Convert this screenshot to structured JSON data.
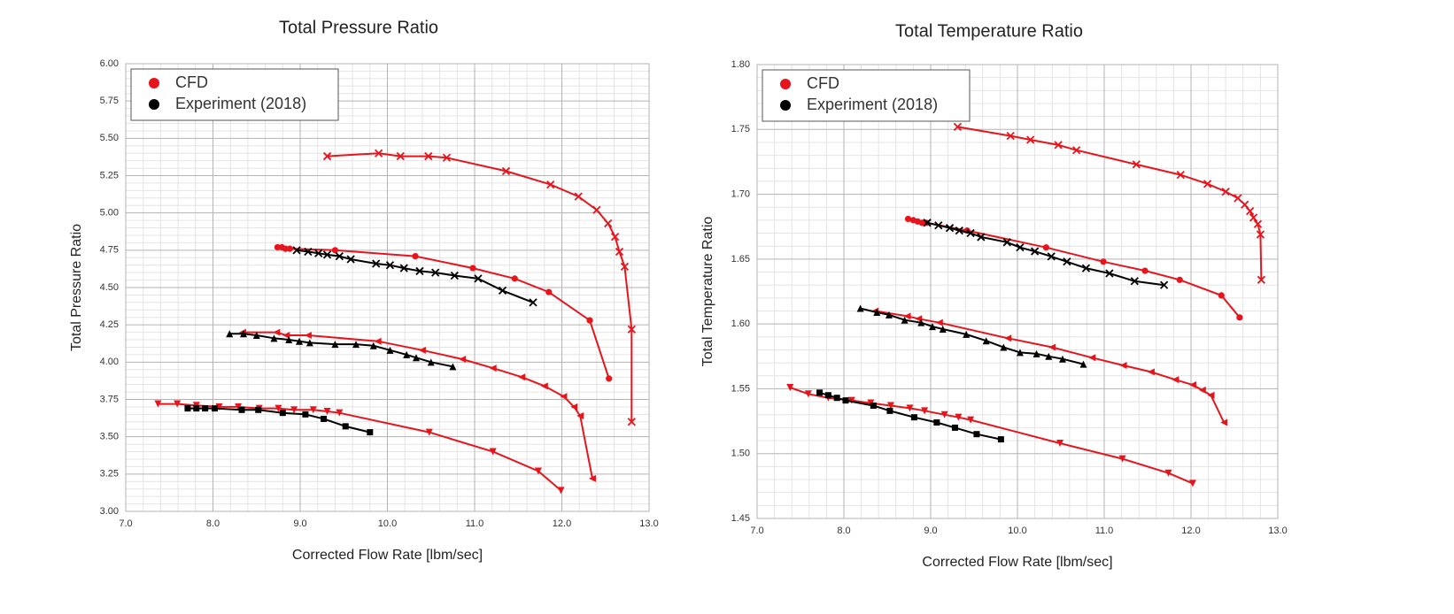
{
  "chart_data": [
    {
      "type": "line",
      "title": "Total Pressure Ratio",
      "x_label": "Corrected Flow Rate [lbm/sec]",
      "y_label": "Total Pressure Ratio",
      "xlim": [
        7,
        13
      ],
      "xticks": [
        {
          "value": 7,
          "label": "7.0"
        },
        {
          "value": 8,
          "label": "8.0"
        },
        {
          "value": 9,
          "label": "9.0"
        },
        {
          "value": 10,
          "label": "10.0"
        },
        {
          "value": 11,
          "label": "11.0"
        },
        {
          "value": 12,
          "label": "12.0"
        },
        {
          "value": 13,
          "label": "13.0"
        }
      ],
      "ylim": [
        3,
        6
      ],
      "yticks": [
        {
          "value": 3,
          "label": "3.00"
        },
        3.25,
        {
          "value": 3.5,
          "label": "3.50"
        },
        3.75,
        {
          "value": 4,
          "label": "4.00"
        },
        4.25,
        {
          "value": 4.5,
          "label": "4.50"
        },
        4.75,
        {
          "value": 5,
          "label": "5.00"
        },
        5.25,
        {
          "value": 5.5,
          "label": "5.50"
        },
        5.75,
        {
          "value": 6,
          "label": "6.00"
        }
      ],
      "grid": true,
      "minor_grid": 5,
      "legend": "upper left",
      "series": [
        {
          "name": "CFD",
          "color": "#e8141c",
          "lines": [
            {
              "marker": "x",
              "x": [
                9.31,
                9.9,
                10.15,
                10.47,
                10.68,
                11.36,
                11.87,
                12.19,
                12.4,
                12.53,
                12.61,
                12.66,
                12.72,
                12.8,
                12.8
              ],
              "values": [
                5.38,
                5.4,
                5.38,
                5.38,
                5.37,
                5.28,
                5.19,
                5.11,
                5.02,
                4.93,
                4.84,
                4.74,
                4.64,
                4.22,
                3.6
              ]
            },
            {
              "marker": "circle",
              "x": [
                8.74,
                8.79,
                8.83,
                8.88,
                9.4,
                10.32,
                10.98,
                11.46,
                11.85,
                12.32,
                12.54
              ],
              "values": [
                4.77,
                4.77,
                4.76,
                4.76,
                4.75,
                4.71,
                4.63,
                4.56,
                4.47,
                4.28,
                3.89
              ]
            },
            {
              "marker": "triangle-left",
              "x": [
                8.34,
                8.73,
                8.84,
                9.09,
                9.89,
                10.4,
                10.86,
                11.21,
                11.54,
                11.8,
                12.02,
                12.14,
                12.21,
                12.35
              ],
              "values": [
                4.2,
                4.2,
                4.18,
                4.18,
                4.14,
                4.08,
                4.02,
                3.96,
                3.9,
                3.84,
                3.77,
                3.7,
                3.64,
                3.22
              ]
            },
            {
              "marker": "triangle-down",
              "x": [
                7.37,
                7.59,
                7.81,
                8.07,
                8.29,
                8.53,
                8.75,
                8.93,
                9.15,
                9.31,
                9.45,
                10.48,
                11.21,
                11.73,
                11.99
              ],
              "values": [
                3.72,
                3.72,
                3.71,
                3.7,
                3.7,
                3.69,
                3.69,
                3.68,
                3.68,
                3.67,
                3.66,
                3.53,
                3.4,
                3.27,
                3.14
              ]
            }
          ]
        },
        {
          "name": "Experiment (2018)",
          "color": "#000000",
          "lines": [
            {
              "marker": "x",
              "x": [
                8.96,
                9.09,
                9.21,
                9.31,
                9.45,
                9.58,
                9.87,
                10.03,
                10.19,
                10.37,
                10.55,
                10.77,
                11.04,
                11.32,
                11.67
              ],
              "values": [
                4.75,
                4.74,
                4.73,
                4.72,
                4.71,
                4.69,
                4.66,
                4.65,
                4.63,
                4.61,
                4.6,
                4.58,
                4.56,
                4.48,
                4.4
              ]
            },
            {
              "marker": "triangle-up",
              "x": [
                8.19,
                8.35,
                8.5,
                8.7,
                8.87,
                8.99,
                9.11,
                9.4,
                9.64,
                9.84,
                10.03,
                10.22,
                10.33,
                10.5,
                10.75
              ],
              "values": [
                4.19,
                4.19,
                4.18,
                4.16,
                4.15,
                4.14,
                4.13,
                4.12,
                4.12,
                4.11,
                4.08,
                4.05,
                4.03,
                4.0,
                3.97
              ]
            },
            {
              "marker": "square",
              "x": [
                7.71,
                7.81,
                7.91,
                8.02,
                8.33,
                8.52,
                8.8,
                9.06,
                9.27,
                9.52,
                9.8
              ],
              "values": [
                3.69,
                3.69,
                3.69,
                3.69,
                3.68,
                3.68,
                3.66,
                3.65,
                3.62,
                3.57,
                3.53
              ]
            }
          ]
        }
      ]
    },
    {
      "type": "line",
      "title": "Total Temperature Ratio",
      "x_label": "Corrected Flow Rate [lbm/sec]",
      "y_label": "Total Temperature Ratio",
      "xlim": [
        7,
        13
      ],
      "xticks": [
        {
          "value": 7,
          "label": "7.0"
        },
        {
          "value": 8,
          "label": "8.0"
        },
        {
          "value": 9,
          "label": "9.0"
        },
        {
          "value": 10,
          "label": "10.0"
        },
        {
          "value": 11,
          "label": "11.0"
        },
        {
          "value": 12,
          "label": "12.0"
        },
        {
          "value": 13,
          "label": "13.0"
        }
      ],
      "ylim": [
        1.45,
        1.8
      ],
      "yticks": [
        1.45,
        {
          "value": 1.5,
          "label": "1.50"
        },
        1.55,
        {
          "value": 1.6,
          "label": "1.60"
        },
        1.65,
        {
          "value": 1.7,
          "label": "1.70"
        },
        1.75,
        {
          "value": 1.8,
          "label": "1.80"
        }
      ],
      "grid": true,
      "minor_grid": 5,
      "legend": "upper left",
      "series": [
        {
          "name": "CFD",
          "color": "#e8141c",
          "lines": [
            {
              "marker": "x",
              "x": [
                9.31,
                9.92,
                10.15,
                10.47,
                10.68,
                11.37,
                11.88,
                12.19,
                12.4,
                12.54,
                12.62,
                12.68,
                12.72,
                12.77,
                12.8,
                12.81
              ],
              "values": [
                1.752,
                1.745,
                1.742,
                1.738,
                1.734,
                1.723,
                1.715,
                1.708,
                1.702,
                1.697,
                1.692,
                1.687,
                1.682,
                1.677,
                1.669,
                1.634
              ]
            },
            {
              "marker": "circle",
              "x": [
                8.74,
                8.8,
                8.85,
                8.9,
                8.95,
                9.42,
                10.33,
                10.99,
                11.47,
                11.87,
                12.35,
                12.56
              ],
              "values": [
                1.681,
                1.68,
                1.679,
                1.678,
                1.678,
                1.672,
                1.659,
                1.648,
                1.641,
                1.634,
                1.622,
                1.605
              ]
            },
            {
              "marker": "triangle-left",
              "x": [
                8.36,
                8.73,
                8.86,
                9.1,
                9.89,
                10.4,
                10.86,
                11.22,
                11.54,
                11.82,
                12.02,
                12.13,
                12.23,
                12.38
              ],
              "values": [
                1.61,
                1.606,
                1.604,
                1.601,
                1.589,
                1.582,
                1.574,
                1.568,
                1.563,
                1.557,
                1.553,
                1.549,
                1.545,
                1.524
              ]
            },
            {
              "marker": "triangle-down",
              "x": [
                7.38,
                7.59,
                7.82,
                8.09,
                8.31,
                8.54,
                8.76,
                8.93,
                9.16,
                9.32,
                9.46,
                10.49,
                11.21,
                11.74,
                12.02
              ],
              "values": [
                1.551,
                1.546,
                1.543,
                1.541,
                1.539,
                1.537,
                1.535,
                1.533,
                1.53,
                1.528,
                1.526,
                1.508,
                1.496,
                1.485,
                1.477
              ]
            }
          ]
        },
        {
          "name": "Experiment (2018)",
          "color": "#000000",
          "lines": [
            {
              "marker": "x",
              "x": [
                8.96,
                9.09,
                9.22,
                9.33,
                9.46,
                9.58,
                9.88,
                10.03,
                10.2,
                10.39,
                10.57,
                10.79,
                11.06,
                11.35,
                11.69
              ],
              "values": [
                1.678,
                1.676,
                1.674,
                1.672,
                1.67,
                1.667,
                1.663,
                1.659,
                1.656,
                1.652,
                1.648,
                1.643,
                1.639,
                1.633,
                1.63
              ]
            },
            {
              "marker": "triangle-up",
              "x": [
                8.19,
                8.38,
                8.52,
                8.7,
                8.89,
                9.02,
                9.14,
                9.41,
                9.64,
                9.84,
                10.03,
                10.22,
                10.36,
                10.52,
                10.76
              ],
              "values": [
                1.612,
                1.609,
                1.607,
                1.603,
                1.601,
                1.598,
                1.596,
                1.592,
                1.587,
                1.582,
                1.578,
                1.577,
                1.575,
                1.573,
                1.569
              ]
            },
            {
              "marker": "square",
              "x": [
                7.72,
                7.82,
                7.92,
                8.02,
                8.34,
                8.53,
                8.81,
                9.07,
                9.28,
                9.53,
                9.81
              ],
              "values": [
                1.547,
                1.545,
                1.543,
                1.541,
                1.537,
                1.533,
                1.528,
                1.524,
                1.52,
                1.515,
                1.511
              ]
            }
          ]
        }
      ]
    }
  ]
}
